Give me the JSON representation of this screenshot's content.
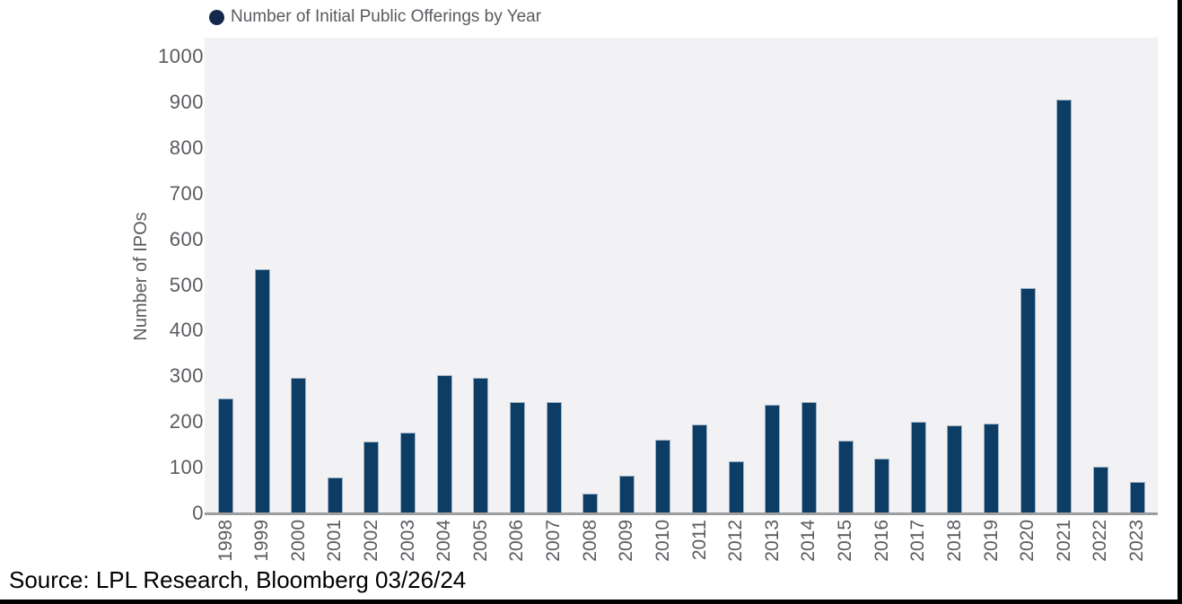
{
  "legend": {
    "label": "Number of Initial Public Offerings by Year"
  },
  "y_axis": {
    "title": "Number of IPOs"
  },
  "source": {
    "text": "Source: LPL Research, Bloomberg 03/26/24"
  },
  "colors": {
    "bar": "#0d3c64",
    "bar_edge": "#9db1c4",
    "legend_dot": "#15294d",
    "plot_background": "#f2f2f4",
    "axis_line": "#9e9e9e",
    "label_text": "#595b60",
    "source_text": "#000000",
    "frame": "#000000"
  },
  "chart_data": {
    "type": "bar",
    "title": "Number of Initial Public Offerings by Year",
    "categories": [
      "1998",
      "1999",
      "2000",
      "2001",
      "2002",
      "2003",
      "2004",
      "2005",
      "2006",
      "2007",
      "2008",
      "2009",
      "2010",
      "2011",
      "2012",
      "2013",
      "2014",
      "2015",
      "2016",
      "2017",
      "2018",
      "2019",
      "2020",
      "2021",
      "2022",
      "2023"
    ],
    "values": [
      252,
      535,
      297,
      78,
      157,
      176,
      302,
      297,
      243,
      244,
      44,
      83,
      162,
      195,
      114,
      238,
      244,
      160,
      119,
      201,
      193,
      196,
      494,
      906,
      102,
      68
    ],
    "xlabel": "",
    "ylabel": "Number of IPOs",
    "ylim": [
      0,
      1040
    ],
    "yticks": [
      0,
      100,
      200,
      300,
      400,
      500,
      600,
      700,
      800,
      900,
      1000
    ],
    "grid": false,
    "legend_position": "top-left"
  }
}
